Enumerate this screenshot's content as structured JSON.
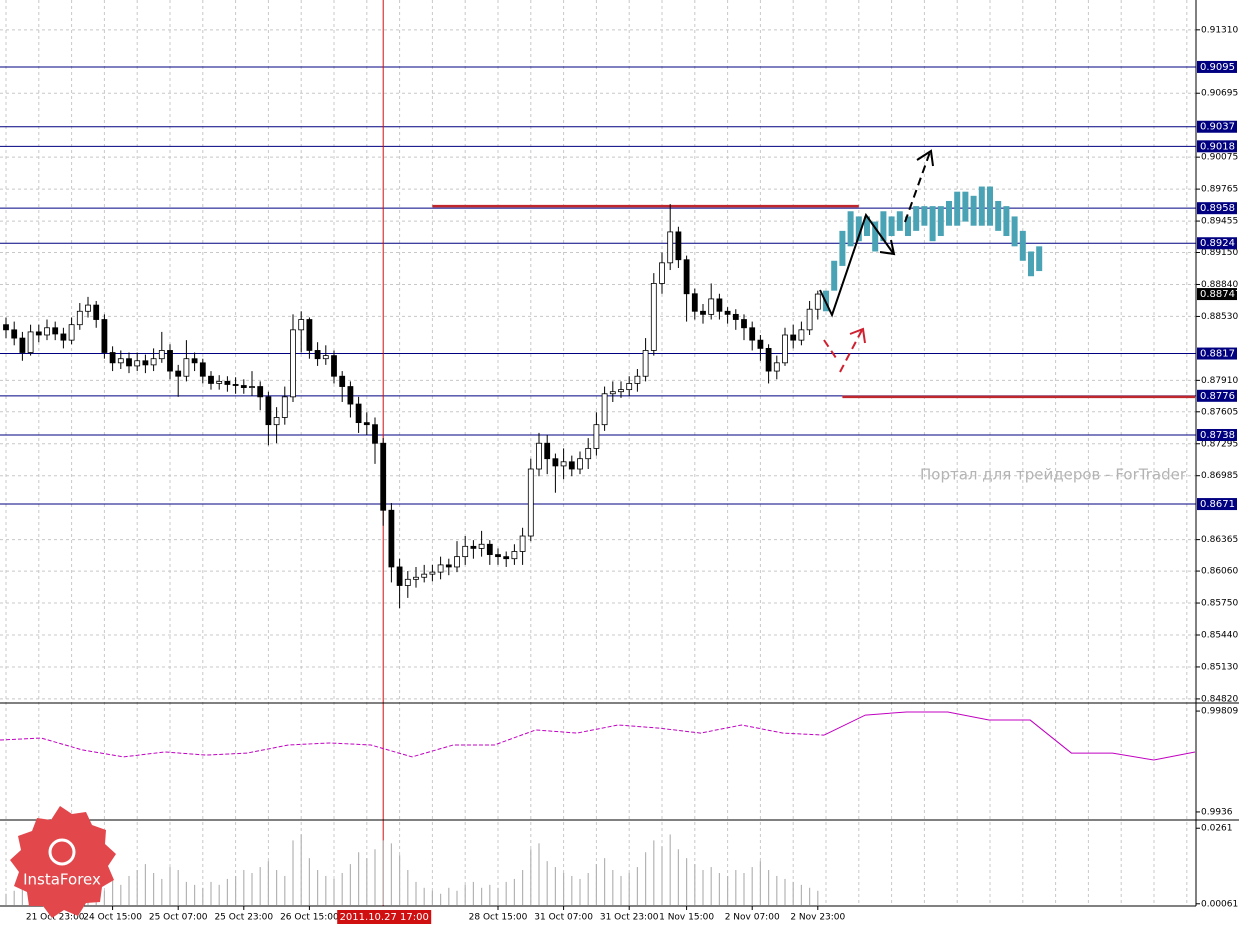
{
  "chart_data": [
    {
      "type": "candlestick",
      "categories": [
        null,
        null,
        null,
        null,
        null,
        null,
        "21 Oct 23:00",
        null,
        null,
        null,
        null,
        null,
        null,
        "24 Oct 15:00",
        null,
        null,
        null,
        null,
        null,
        null,
        null,
        "25 Oct 07:00",
        null,
        null,
        null,
        null,
        null,
        null,
        null,
        "25 Oct 23:00",
        null,
        null,
        null,
        null,
        null,
        null,
        null,
        "26 Oct 15:00",
        null,
        null,
        null,
        null,
        null,
        null,
        null,
        null,
        null,
        null,
        null,
        null,
        null,
        null,
        null,
        null,
        null,
        null,
        null,
        null,
        null,
        null,
        "28 Oct 15:00",
        null,
        null,
        null,
        null,
        null,
        null,
        null,
        "31 Oct 07:00",
        null,
        null,
        null,
        null,
        null,
        null,
        null,
        "31 Oct 23:00",
        null,
        null,
        null,
        null,
        null,
        null,
        "1 Nov 15:00",
        null,
        null,
        null,
        null,
        null,
        null,
        null,
        "2 Nov 07:00",
        null,
        null,
        null,
        null,
        null,
        null,
        null,
        "2 Nov 23:00"
      ],
      "open": [
        0.8845,
        0.884,
        0.8832,
        0.8818,
        0.8838,
        0.8835,
        0.8842,
        0.8836,
        0.883,
        0.8845,
        0.8858,
        0.8864,
        0.885,
        0.8818,
        0.8808,
        0.8812,
        0.8805,
        0.881,
        0.8806,
        0.8812,
        0.882,
        0.88,
        0.8795,
        0.8812,
        0.8808,
        0.8795,
        0.8788,
        0.879,
        0.8787,
        0.8786,
        0.8784,
        0.8785,
        0.8775,
        0.8748,
        0.8755,
        0.8775,
        0.884,
        0.885,
        0.882,
        0.8812,
        0.8815,
        0.8795,
        0.8785,
        0.8768,
        0.875,
        0.8748,
        0.873,
        0.8665,
        0.861,
        0.8592,
        0.8598,
        0.86,
        0.8603,
        0.8605,
        0.8612,
        0.861,
        0.862,
        0.863,
        0.8628,
        0.8632,
        0.8622,
        0.862,
        0.8618,
        0.8625,
        0.864,
        0.8705,
        0.873,
        0.8715,
        0.8708,
        0.8712,
        0.8705,
        0.8715,
        0.8725,
        0.8748,
        0.8778,
        0.878,
        0.8782,
        0.8788,
        0.8795,
        0.882,
        0.8885,
        0.8905,
        0.8935,
        0.8908,
        0.8875,
        0.8858,
        0.8855,
        0.887,
        0.8858,
        0.8855,
        0.885,
        0.8842,
        0.883,
        0.8822,
        0.88,
        0.8808,
        0.8835,
        0.883,
        0.884,
        0.886
      ],
      "high": [
        0.8852,
        0.8848,
        0.8838,
        0.8845,
        0.8845,
        0.885,
        0.8848,
        0.8842,
        0.8852,
        0.8866,
        0.8872,
        0.8868,
        0.8855,
        0.8824,
        0.882,
        0.8818,
        0.8818,
        0.8816,
        0.8822,
        0.8838,
        0.8826,
        0.8806,
        0.883,
        0.8818,
        0.8812,
        0.88,
        0.8796,
        0.8795,
        0.8794,
        0.8792,
        0.88,
        0.879,
        0.878,
        0.8765,
        0.8785,
        0.8855,
        0.8858,
        0.8852,
        0.8828,
        0.8825,
        0.882,
        0.88,
        0.879,
        0.8775,
        0.876,
        0.8755,
        0.8735,
        0.8672,
        0.8618,
        0.8606,
        0.861,
        0.8612,
        0.8612,
        0.862,
        0.8618,
        0.8635,
        0.864,
        0.8636,
        0.8645,
        0.8636,
        0.8628,
        0.8625,
        0.8632,
        0.8648,
        0.8715,
        0.874,
        0.8738,
        0.872,
        0.8725,
        0.8718,
        0.8722,
        0.8735,
        0.876,
        0.8785,
        0.879,
        0.879,
        0.8795,
        0.8802,
        0.8832,
        0.8895,
        0.8915,
        0.8962,
        0.894,
        0.8912,
        0.888,
        0.8865,
        0.8885,
        0.8875,
        0.8862,
        0.886,
        0.8855,
        0.8848,
        0.8835,
        0.8826,
        0.8815,
        0.8842,
        0.8845,
        0.8848,
        0.8868,
        0.8878
      ],
      "low": [
        0.8832,
        0.8825,
        0.881,
        0.8815,
        0.8828,
        0.883,
        0.883,
        0.8822,
        0.8826,
        0.884,
        0.8852,
        0.8842,
        0.8812,
        0.88,
        0.8802,
        0.8798,
        0.88,
        0.8798,
        0.88,
        0.8808,
        0.8792,
        0.8775,
        0.879,
        0.88,
        0.8788,
        0.8782,
        0.8782,
        0.878,
        0.8778,
        0.8778,
        0.8776,
        0.8762,
        0.8728,
        0.873,
        0.8748,
        0.877,
        0.8818,
        0.8812,
        0.8805,
        0.8806,
        0.8788,
        0.877,
        0.8755,
        0.874,
        0.8738,
        0.871,
        0.865,
        0.8595,
        0.857,
        0.858,
        0.859,
        0.8595,
        0.8596,
        0.8598,
        0.8602,
        0.8605,
        0.8612,
        0.8618,
        0.862,
        0.8612,
        0.8612,
        0.861,
        0.8612,
        0.8612,
        0.8635,
        0.8698,
        0.87,
        0.8682,
        0.8695,
        0.8698,
        0.87,
        0.8705,
        0.8718,
        0.8742,
        0.877,
        0.8774,
        0.8776,
        0.878,
        0.879,
        0.8815,
        0.8875,
        0.8898,
        0.89,
        0.8848,
        0.885,
        0.8846,
        0.885,
        0.885,
        0.8846,
        0.884,
        0.883,
        0.882,
        0.881,
        0.8788,
        0.8792,
        0.8805,
        0.8822,
        0.8825,
        0.8835,
        0.885
      ],
      "close": [
        0.884,
        0.8832,
        0.8818,
        0.8838,
        0.8835,
        0.8842,
        0.8836,
        0.883,
        0.8845,
        0.8858,
        0.8864,
        0.885,
        0.8818,
        0.8808,
        0.8812,
        0.8805,
        0.881,
        0.8806,
        0.8812,
        0.882,
        0.88,
        0.8795,
        0.8812,
        0.8808,
        0.8795,
        0.8788,
        0.879,
        0.8787,
        0.8786,
        0.8784,
        0.8785,
        0.8775,
        0.8748,
        0.8755,
        0.8775,
        0.884,
        0.885,
        0.882,
        0.8812,
        0.8815,
        0.8795,
        0.8785,
        0.8768,
        0.875,
        0.8748,
        0.873,
        0.8665,
        0.861,
        0.8592,
        0.8598,
        0.86,
        0.8603,
        0.8605,
        0.8612,
        0.861,
        0.862,
        0.863,
        0.8628,
        0.8632,
        0.8622,
        0.862,
        0.8618,
        0.8625,
        0.864,
        0.8705,
        0.873,
        0.8715,
        0.8708,
        0.8712,
        0.8705,
        0.8715,
        0.8725,
        0.8748,
        0.8778,
        0.878,
        0.8782,
        0.8788,
        0.8795,
        0.882,
        0.8885,
        0.8905,
        0.8935,
        0.8908,
        0.8875,
        0.8858,
        0.8855,
        0.887,
        0.8858,
        0.8855,
        0.885,
        0.8842,
        0.883,
        0.8822,
        0.88,
        0.8808,
        0.8835,
        0.883,
        0.884,
        0.886,
        0.88747
      ],
      "forecast": {
        "color": "#4aa3b5",
        "high": [
          0.8878,
          0.8907,
          0.8936,
          0.8955,
          0.895,
          0.895,
          0.8945,
          0.8955,
          0.895,
          0.8955,
          0.895,
          0.896,
          0.896,
          0.896,
          0.896,
          0.8965,
          0.8974,
          0.8974,
          0.897,
          0.8979,
          0.8979,
          0.8965,
          0.896,
          0.895,
          0.8936,
          0.8916,
          0.8921
        ],
        "low": [
          0.8858,
          0.8878,
          0.8902,
          0.8921,
          0.8926,
          0.8931,
          0.8916,
          0.8926,
          0.8931,
          0.8936,
          0.8931,
          0.8936,
          0.8941,
          0.8926,
          0.8931,
          0.8941,
          0.8941,
          0.8945,
          0.8941,
          0.8941,
          0.8941,
          0.8936,
          0.8931,
          0.8921,
          0.8907,
          0.8892,
          0.8897
        ]
      },
      "ylim": [
        0.8479,
        0.9158
      ],
      "yticks": [
        {
          "value": 0.9131,
          "label": "0.91310"
        },
        0.90695,
        0.90075,
        0.89765,
        0.89455,
        {
          "value": 0.8915,
          "label": "0.89150"
        },
        {
          "value": 0.8884,
          "label": "0.88840"
        },
        {
          "value": 0.8853,
          "label": "0.88530"
        },
        {
          "value": 0.8791,
          "label": "0.87910"
        },
        0.87605,
        0.87295,
        0.86985,
        0.86365,
        {
          "value": 0.8606,
          "label": "0.86060"
        },
        {
          "value": 0.8575,
          "label": "0.85750"
        },
        {
          "value": 0.8544,
          "label": "0.85440"
        },
        {
          "value": 0.8513,
          "label": "0.85130"
        },
        {
          "value": 0.8482,
          "label": "0.84820"
        }
      ],
      "grid": true,
      "levels": [
        {
          "value": 0.9095,
          "color": "#000080"
        },
        {
          "value": 0.9037,
          "color": "#000080"
        },
        {
          "value": 0.9018,
          "color": "#000080"
        },
        {
          "value": 0.8958,
          "color": "#000080"
        },
        {
          "value": 0.8924,
          "color": "#000080"
        },
        {
          "value": 0.8817,
          "color": "#000080"
        },
        {
          "value": 0.8776,
          "color": "#000080"
        },
        {
          "value": 0.8738,
          "color": "#000080"
        },
        {
          "value": 0.8671,
          "color": "#000080"
        }
      ],
      "red_lines": [
        {
          "value": 0.896,
          "from": 52,
          "to": 104,
          "color": "#c0272d"
        },
        {
          "value": 0.8775,
          "from": 102,
          "to": 145,
          "color": "#c0272d"
        }
      ],
      "crosshair": {
        "label": "2011.10.27 17:00",
        "x": 46,
        "color": "#d01010"
      },
      "watermark": "Портал для трейдеров - ForTrader",
      "logo": "InstaForex"
    },
    {
      "type": "line",
      "color": "#c000c0",
      "values": [
        0.9968,
        0.99689,
        0.99636,
        0.99605,
        0.99627,
        0.99613,
        0.99622,
        0.99658,
        0.99667,
        0.99658,
        0.99605,
        0.99658,
        0.99658,
        0.99725,
        0.99711,
        0.99747,
        0.99733,
        0.99711,
        0.99747,
        0.99711,
        0.99702,
        0.99791,
        0.99805,
        0.99805,
        0.99769,
        0.99769,
        0.99622,
        0.99622,
        0.99591,
        0.99627
      ],
      "ylim": [
        0.99333,
        0.99836
      ],
      "yticks": [
        0.99809,
        0.9936
      ]
    },
    {
      "type": "bar",
      "color": "#b4b4b4",
      "values": [
        0.004,
        0.005,
        0.006,
        0.003,
        0.004,
        0.007,
        0.005,
        0.006,
        0.004,
        0.005,
        0.008,
        0.006,
        0.005,
        0.009,
        0.007,
        0.01,
        0.012,
        0.014,
        0.011,
        0.009,
        0.013,
        0.012,
        0.008,
        0.007,
        0.006,
        0.008,
        0.007,
        0.009,
        0.01,
        0.012,
        0.011,
        0.013,
        0.015,
        0.012,
        0.01,
        0.022,
        0.024,
        0.016,
        0.012,
        0.01,
        0.009,
        0.011,
        0.014,
        0.018,
        0.016,
        0.019,
        0.022,
        0.021,
        0.017,
        0.012,
        0.008,
        0.006,
        0.005,
        0.004,
        0.006,
        0.005,
        0.007,
        0.008,
        0.006,
        0.007,
        0.006,
        0.008,
        0.009,
        0.012,
        0.019,
        0.021,
        0.015,
        0.013,
        0.011,
        0.01,
        0.009,
        0.011,
        0.014,
        0.016,
        0.012,
        0.01,
        0.011,
        0.013,
        0.018,
        0.022,
        0.02,
        0.024,
        0.019,
        0.016,
        0.014,
        0.012,
        0.013,
        0.011,
        0.01,
        0.012,
        0.011,
        0.013,
        0.015,
        0.012,
        0.01,
        0.009,
        0.008,
        0.007,
        0.006,
        0.005
      ],
      "ylim": [
        0.0002,
        0.0282
      ],
      "yticks": [
        0.0261,
        0.00061
      ]
    }
  ]
}
